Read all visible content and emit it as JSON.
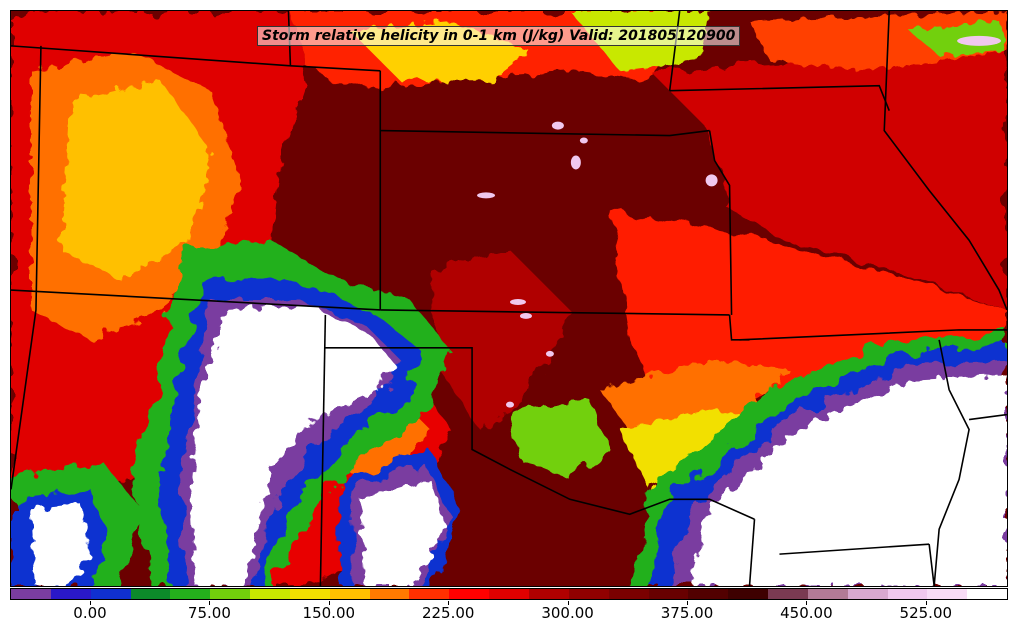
{
  "title": "Storm relative helicity in 0-1 km (J/kg) Valid: 201805120900",
  "colorbar": {
    "colors": [
      "#7a3da0",
      "#2a18c8",
      "#1030d0",
      "#0c8a2a",
      "#24b01c",
      "#72d00c",
      "#c8e800",
      "#f2e000",
      "#ffc000",
      "#ff7a00",
      "#ff3000",
      "#ff0000",
      "#e00000",
      "#b00000",
      "#900000",
      "#7a0000",
      "#680000",
      "#520000",
      "#3e0000",
      "#7a3a52",
      "#b27a96",
      "#d8a8d0",
      "#f0c8ee",
      "#f8dcf6",
      "#ffffff"
    ],
    "tick_labels": [
      "0.00",
      "75.00",
      "150.00",
      "225.00",
      "300.00",
      "375.00",
      "450.00",
      "525.00"
    ]
  },
  "legend_colors": {
    "background_low": "#ffffff",
    "mid": "#ff0000",
    "high": "#6b0000",
    "extreme": "#f0c8ee",
    "state_borders": "#000000"
  }
}
